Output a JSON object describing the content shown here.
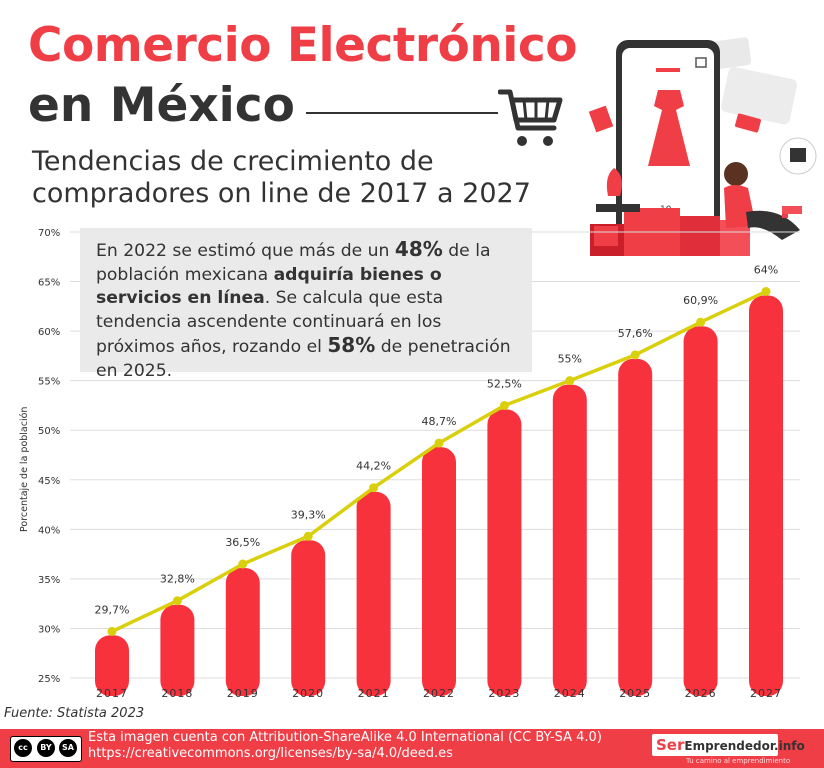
{
  "header": {
    "title_line1": "Comercio Electrónico",
    "title_line2": "en México",
    "subtitle": "Tendencias de crecimiento de compradores on line de 2017 a 2027"
  },
  "note": {
    "p1": "En 2022 se estimó que más de un ",
    "p1_bold": "48%",
    "p2": " de la población mexicana ",
    "p2_bold": "adquiría bienes o servicios en línea",
    "p3": ". Se calcula que esta tendencia ascendente continuará en los próximos años, rozando el ",
    "p3_bold": "58%",
    "p4": " de penetración en 2025."
  },
  "illustration": {
    "phone_price": "10",
    "icons": [
      "shopping-cart-icon",
      "smartphone-icon",
      "dress-icon",
      "shopping-bag-icon",
      "gift-box-icon",
      "credit-card-icon"
    ]
  },
  "chart_data": {
    "type": "bar",
    "ylabel": "Porcentaje de la población",
    "ylim": [
      25,
      70
    ],
    "yticks": [
      "25%",
      "30%",
      "35%",
      "40%",
      "45%",
      "50%",
      "55%",
      "60%",
      "65%",
      "70%"
    ],
    "categories": [
      "2017",
      "2018",
      "2019",
      "2020",
      "2021",
      "2022",
      "2023",
      "2024",
      "2025",
      "2026",
      "2027"
    ],
    "values": [
      29.7,
      32.8,
      36.5,
      39.3,
      44.2,
      48.7,
      52.5,
      55,
      57.6,
      60.9,
      64
    ],
    "data_labels": [
      "29,7%",
      "32,8%",
      "36,5%",
      "39,3%",
      "44,2%",
      "48,7%",
      "52,5%",
      "55%",
      "57,6%",
      "60,9%",
      "64%"
    ],
    "bar_color": "#f8323d",
    "line_color": "#d9cf0b",
    "grid": true
  },
  "source": "Fuente: Statista 2023",
  "footer": {
    "license_line1": "Esta imagen cuenta con Attribution-ShareAlike 4.0 International (CC BY-SA 4.0)",
    "license_line2": "https://creativecommons.org/licenses/by-sa/4.0/deed.es",
    "cc_badge": "cc",
    "cc_by": "BY",
    "cc_sa": "SA",
    "brand_ser": "Ser",
    "brand_rest": "Emprendedor.info",
    "brand_tagline": "Tu camino al emprendimiento"
  }
}
